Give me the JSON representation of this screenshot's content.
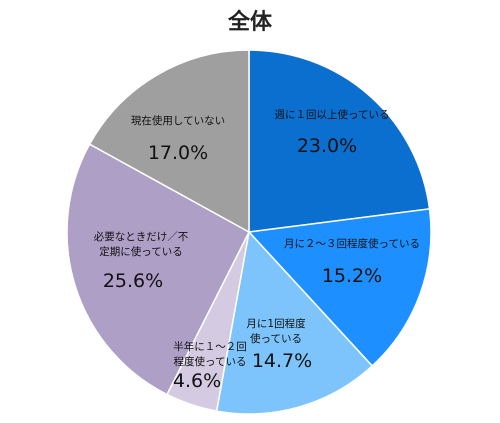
{
  "chart_data": {
    "type": "pie",
    "title": "全体",
    "slices": [
      {
        "label_lines": [
          "週に１回以上使っている"
        ],
        "value": 23.0,
        "display": "23.0%",
        "color": "#0a6fcf"
      },
      {
        "label_lines": [
          "月に２～３回程度使っている"
        ],
        "value": 15.2,
        "display": "15.2%",
        "color": "#1e8fff"
      },
      {
        "label_lines": [
          "月に1回程度",
          "使っている"
        ],
        "value": 14.7,
        "display": "14.7%",
        "color": "#7cc4fb"
      },
      {
        "label_lines": [
          "半年に１～２回",
          "程度使っている"
        ],
        "value": 4.6,
        "display": "4.6%",
        "color": "#d4cbe2"
      },
      {
        "label_lines": [
          "必要なときだけ／不",
          "定期に使っている"
        ],
        "value": 25.6,
        "display": "25.6%",
        "color": "#ae9fc6"
      },
      {
        "label_lines": [
          "現在使用していない"
        ],
        "value": 17.0,
        "display": "17.0%",
        "color": "#9f9f9f"
      }
    ]
  }
}
